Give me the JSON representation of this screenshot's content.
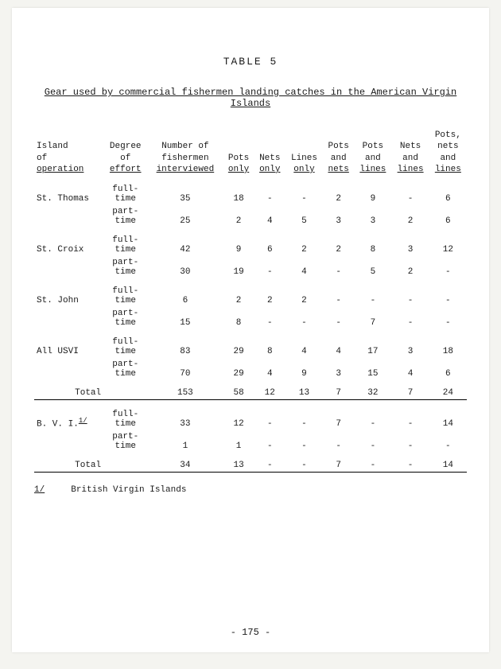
{
  "title": "TABLE  5",
  "subtitle": "Gear used by commercial fishermen landing catches in the American Virgin Islands",
  "headers": {
    "col0a": "Island",
    "col0b": "of",
    "col0c": "operation",
    "col1a": "Degree",
    "col1b": "of",
    "col1c": "effort",
    "col2a": "Number of",
    "col2b": "fishermen",
    "col2c": "interviewed",
    "col3a": "Pots",
    "col3b": "only",
    "col4a": "Nets",
    "col4b": "only",
    "col5a": "Lines",
    "col5b": "only",
    "col6a": "Pots",
    "col6b": "and",
    "col6c": "nets",
    "col7a": "Pots",
    "col7b": "and",
    "col7c": "lines",
    "col8a": "Nets",
    "col8b": "and",
    "col8c": "lines",
    "col9a": "Pots,",
    "col9b": "nets",
    "col9c": "and",
    "col9d": "lines"
  },
  "groups": [
    {
      "island": "St. Thomas",
      "rows": [
        {
          "effort": "full-\ntime",
          "c": [
            "35",
            "18",
            "-",
            "-",
            "2",
            "9",
            "-",
            "6"
          ]
        },
        {
          "effort": "part-\ntime",
          "c": [
            "25",
            "2",
            "4",
            "5",
            "3",
            "3",
            "2",
            "6"
          ]
        }
      ]
    },
    {
      "island": "St. Croix",
      "rows": [
        {
          "effort": "full-\ntime",
          "c": [
            "42",
            "9",
            "6",
            "2",
            "2",
            "8",
            "3",
            "12"
          ]
        },
        {
          "effort": "part-\ntime",
          "c": [
            "30",
            "19",
            "-",
            "4",
            "-",
            "5",
            "2",
            "-"
          ]
        }
      ]
    },
    {
      "island": "St. John",
      "rows": [
        {
          "effort": "full-\ntime",
          "c": [
            "6",
            "2",
            "2",
            "2",
            "-",
            "-",
            "-",
            "-"
          ]
        },
        {
          "effort": "part-\ntime",
          "c": [
            "15",
            "8",
            "-",
            "-",
            "-",
            "7",
            "-",
            "-"
          ]
        }
      ]
    },
    {
      "island": "All USVI",
      "rows": [
        {
          "effort": "full-\ntime",
          "c": [
            "83",
            "29",
            "8",
            "4",
            "4",
            "17",
            "3",
            "18"
          ]
        },
        {
          "effort": "part-\ntime",
          "c": [
            "70",
            "29",
            "4",
            "9",
            "3",
            "15",
            "4",
            "6"
          ]
        }
      ]
    }
  ],
  "total1": {
    "label": "Total",
    "c": [
      "153",
      "58",
      "12",
      "13",
      "7",
      "32",
      "7",
      "24"
    ]
  },
  "bvi": {
    "island": "B. V. I.",
    "fn": "1/",
    "rows": [
      {
        "effort": "full-\ntime",
        "c": [
          "33",
          "12",
          "-",
          "-",
          "7",
          "-",
          "-",
          "14"
        ]
      },
      {
        "effort": "part-\ntime",
        "c": [
          "1",
          "1",
          "-",
          "-",
          "-",
          "-",
          "-",
          "-"
        ]
      }
    ]
  },
  "total2": {
    "label": "Total",
    "c": [
      "34",
      "13",
      "-",
      "-",
      "7",
      "-",
      "-",
      "14"
    ]
  },
  "footnote": {
    "mark": "1/",
    "text": "British Virgin Islands"
  },
  "pagenum": "- 175 -"
}
